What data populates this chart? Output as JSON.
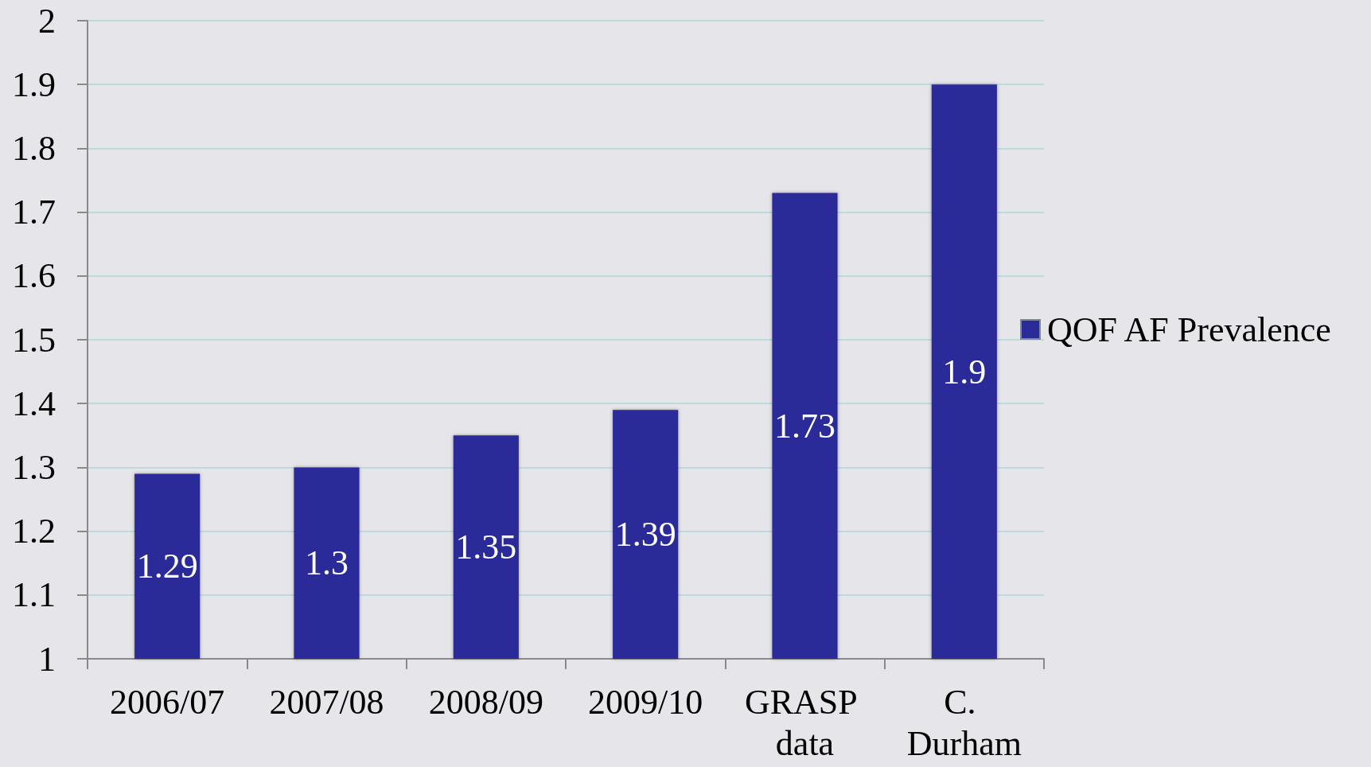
{
  "chart_data": {
    "type": "bar",
    "categories": [
      "2006/07",
      "2007/08",
      "2008/09",
      "2009/10",
      "GRASP data",
      "C. Durham"
    ],
    "series": [
      {
        "name": "QOF AF Prevalence",
        "color": "#2a2a98",
        "values": [
          1.29,
          1.3,
          1.35,
          1.39,
          1.73,
          1.9
        ]
      }
    ],
    "ylim": [
      1,
      2
    ],
    "yticks": [
      1,
      1.1,
      1.2,
      1.3,
      1.4,
      1.5,
      1.6,
      1.7,
      1.8,
      1.9,
      2
    ],
    "grid": "y",
    "data_labels": true,
    "legend": "right"
  }
}
